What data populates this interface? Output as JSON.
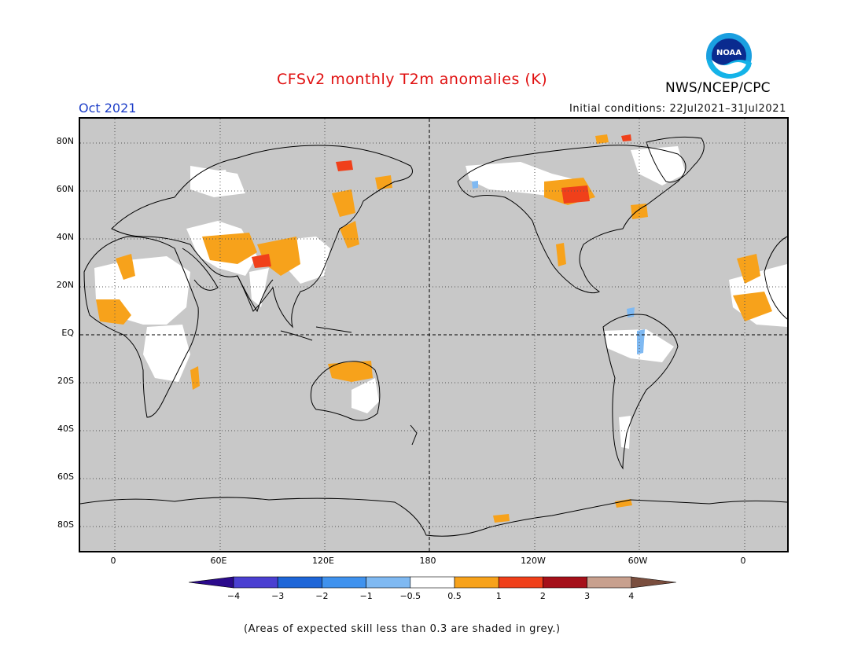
{
  "header": {
    "title": "CFSv2 monthly T2m anomalies (K)",
    "agency": "NWS/NCEP/CPC",
    "logo_text": "NOAA",
    "month": "Oct 2021",
    "initial_conditions": "Initial conditions: 22Jul2021–31Jul2021"
  },
  "map": {
    "projection": "cylindrical equidistant, centered on 180",
    "lat_labels": [
      "80N",
      "60N",
      "40N",
      "20N",
      "EQ",
      "20S",
      "40S",
      "60S",
      "80S"
    ],
    "lon_labels": [
      "0",
      "60E",
      "120E",
      "180",
      "120W",
      "60W",
      "0"
    ],
    "grey_meaning": "skill < 0.3",
    "anomaly_regions": [
      {
        "name": "West Africa / Sahel",
        "category": "0.5 to 1"
      },
      {
        "name": "Arabian Peninsula and Middle East",
        "category": "0.5 to 1"
      },
      {
        "name": "Tibetan Plateau",
        "category": "1 to 2"
      },
      {
        "name": "Northern Australia",
        "category": "0.5 to 1"
      },
      {
        "name": "Central Canada (Hudson Bay)",
        "category": "1 to 3"
      },
      {
        "name": "Eastern Siberia",
        "category": "0.5 to 1"
      },
      {
        "name": "Amazon basin",
        "category": "-1 to -0.5"
      }
    ]
  },
  "colorbar": {
    "labels": [
      "−4",
      "−3",
      "−2",
      "−1",
      "−0.5",
      "0.5",
      "1",
      "2",
      "3",
      "4"
    ],
    "colors": [
      "#2b0a8c",
      "#4a3fd1",
      "#1e66d8",
      "#3f92ee",
      "#7fb9f2",
      "#ffffff",
      "#f7a21b",
      "#f0401a",
      "#a5101a",
      "#c8a08e",
      "#7a4e3e"
    ]
  },
  "footnote": "(Areas of expected skill less than 0.3 are shaded in grey.)"
}
